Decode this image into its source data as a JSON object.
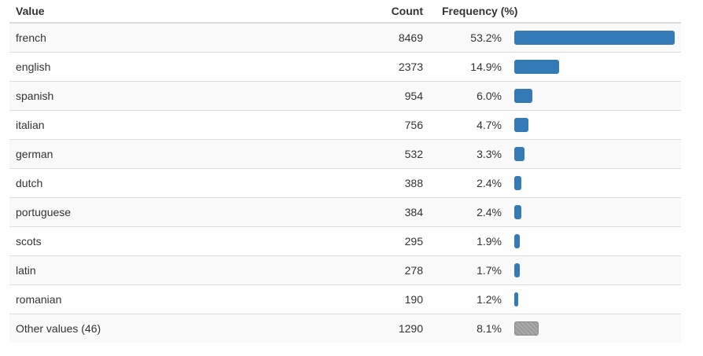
{
  "table": {
    "headers": {
      "value": "Value",
      "count": "Count",
      "frequency": "Frequency (%)"
    },
    "rows": [
      {
        "value": "french",
        "count": "8469",
        "frequency": "53.2%",
        "fraction": 0.532
      },
      {
        "value": "english",
        "count": "2373",
        "frequency": "14.9%",
        "fraction": 0.149
      },
      {
        "value": "spanish",
        "count": "954",
        "frequency": "6.0%",
        "fraction": 0.06
      },
      {
        "value": "italian",
        "count": "756",
        "frequency": "4.7%",
        "fraction": 0.047
      },
      {
        "value": "german",
        "count": "532",
        "frequency": "3.3%",
        "fraction": 0.033
      },
      {
        "value": "dutch",
        "count": "388",
        "frequency": "2.4%",
        "fraction": 0.024
      },
      {
        "value": "portuguese",
        "count": "384",
        "frequency": "2.4%",
        "fraction": 0.024
      },
      {
        "value": "scots",
        "count": "295",
        "frequency": "1.9%",
        "fraction": 0.019
      },
      {
        "value": "latin",
        "count": "278",
        "frequency": "1.7%",
        "fraction": 0.017
      },
      {
        "value": "romanian",
        "count": "190",
        "frequency": "1.2%",
        "fraction": 0.012
      },
      {
        "value": "Other values (46)",
        "count": "1290",
        "frequency": "8.1%",
        "fraction": 0.081,
        "other": true
      }
    ],
    "bar_color": "#337ab7",
    "other_bar_color": "#999999"
  }
}
